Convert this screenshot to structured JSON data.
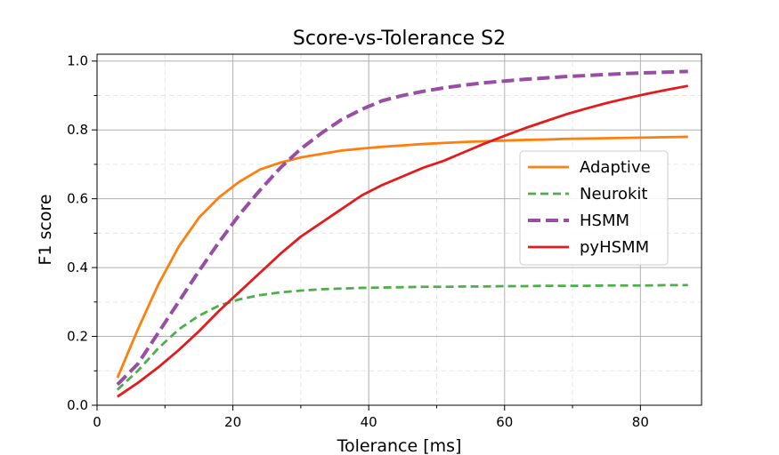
{
  "chart_data": {
    "type": "line",
    "title": "Score-vs-Tolerance S2",
    "xlabel": "Tolerance [ms]",
    "ylabel": "F1 score",
    "xlim": [
      0,
      89
    ],
    "ylim": [
      0,
      1.02
    ],
    "xticks": [
      0,
      20,
      40,
      60,
      80
    ],
    "xtick_labels": [
      "0",
      "20",
      "40",
      "60",
      "80"
    ],
    "yticks": [
      0.0,
      0.2,
      0.4,
      0.6,
      0.8,
      1.0
    ],
    "ytick_labels": [
      "0.0",
      "0.2",
      "0.4",
      "0.6",
      "0.8",
      "1.0"
    ],
    "grid": true,
    "legend_position": "center-right",
    "x": [
      3,
      6,
      9,
      12,
      15,
      18,
      21,
      24,
      27,
      30,
      33,
      36,
      39,
      42,
      45,
      48,
      51,
      54,
      57,
      60,
      63,
      66,
      69,
      72,
      75,
      78,
      81,
      84,
      87
    ],
    "series": [
      {
        "name": "Adaptive",
        "color": "#ff7f0e",
        "style": "solid",
        "values": [
          0.08,
          0.22,
          0.35,
          0.46,
          0.545,
          0.605,
          0.65,
          0.685,
          0.705,
          0.72,
          0.73,
          0.74,
          0.746,
          0.751,
          0.755,
          0.759,
          0.762,
          0.765,
          0.767,
          0.769,
          0.771,
          0.772,
          0.774,
          0.775,
          0.776,
          0.777,
          0.778,
          0.779,
          0.78
        ]
      },
      {
        "name": "Neurokit",
        "color": "#4daf4a",
        "style": "dashed",
        "values": [
          0.045,
          0.1,
          0.165,
          0.22,
          0.26,
          0.29,
          0.308,
          0.32,
          0.328,
          0.333,
          0.337,
          0.339,
          0.341,
          0.342,
          0.343,
          0.344,
          0.344,
          0.345,
          0.345,
          0.346,
          0.346,
          0.347,
          0.347,
          0.347,
          0.348,
          0.348,
          0.348,
          0.349,
          0.349
        ]
      },
      {
        "name": "HSMM",
        "color": "#984ea3",
        "style": "dashed",
        "values": [
          0.06,
          0.12,
          0.21,
          0.3,
          0.39,
          0.475,
          0.555,
          0.625,
          0.69,
          0.745,
          0.79,
          0.83,
          0.86,
          0.885,
          0.9,
          0.912,
          0.922,
          0.93,
          0.937,
          0.942,
          0.947,
          0.951,
          0.955,
          0.958,
          0.961,
          0.964,
          0.966,
          0.968,
          0.97
        ]
      },
      {
        "name": "pyHSMM",
        "color": "#e41a1c",
        "style": "solid",
        "values": [
          0.025,
          0.065,
          0.11,
          0.16,
          0.215,
          0.275,
          0.33,
          0.385,
          0.44,
          0.49,
          0.53,
          0.57,
          0.61,
          0.64,
          0.665,
          0.69,
          0.71,
          0.735,
          0.76,
          0.783,
          0.805,
          0.825,
          0.845,
          0.862,
          0.878,
          0.892,
          0.905,
          0.917,
          0.928
        ]
      }
    ]
  }
}
